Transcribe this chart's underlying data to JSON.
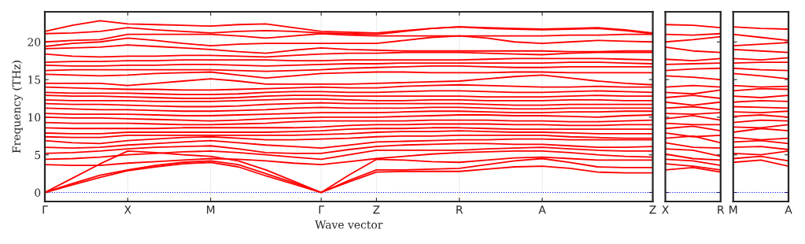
{
  "chart_data": [
    {
      "type": "line",
      "xlabel": "Wave vector",
      "ylabel": "Frequency (THz)",
      "categories": [
        "Γ",
        null,
        null,
        "X",
        null,
        null,
        "M",
        null,
        null,
        null,
        "Γ",
        null,
        "Z",
        null,
        null,
        "R",
        null,
        null,
        "A",
        null,
        null,
        null,
        "Z"
      ],
      "ylim": [
        -1.2,
        24
      ],
      "yticks": [
        0,
        5,
        10,
        15,
        20
      ],
      "grid": "x",
      "ref_lines": [
        {
          "axis": "y",
          "value": 0,
          "color": "#0000ff",
          "line_style": "dotted"
        }
      ],
      "series": [
        {
          "color": "#ff0000",
          "values": [
            0,
            1.0,
            2.0,
            2.9,
            3.4,
            3.8,
            4.0,
            3.4,
            2.2,
            1.1,
            0,
            1.4,
            2.7,
            2.8,
            2.8,
            2.8,
            3.1,
            3.4,
            3.5,
            3.2,
            2.7,
            2.6,
            2.6
          ]
        },
        {
          "color": "#ff0000",
          "values": [
            0,
            1.2,
            2.3,
            3.0,
            3.6,
            4.0,
            4.2,
            3.7,
            2.5,
            1.3,
            0,
            1.6,
            3.0,
            3.0,
            3.1,
            3.2,
            3.7,
            4.2,
            4.5,
            4.0,
            3.4,
            3.3,
            3.3
          ]
        },
        {
          "color": "#ff0000",
          "values": [
            0,
            1.9,
            3.8,
            5.5,
            5.3,
            5.0,
            4.8,
            4.2,
            3.0,
            1.5,
            0,
            2.3,
            4.4,
            4.3,
            4.1,
            4.0,
            4.3,
            4.6,
            4.7,
            4.5,
            4.3,
            4.3,
            4.3
          ]
        },
        {
          "color": "#ff0000",
          "values": [
            3.7,
            3.6,
            3.6,
            3.9,
            4.1,
            4.3,
            4.5,
            4.4,
            4.2,
            3.9,
            3.7,
            4.1,
            4.5,
            4.8,
            5.1,
            5.3,
            5.4,
            5.5,
            5.5,
            5.3,
            5.0,
            4.8,
            4.7
          ]
        },
        {
          "color": "#ff0000",
          "values": [
            4.4,
            4.5,
            4.7,
            5.0,
            5.2,
            5.4,
            5.5,
            5.3,
            5.0,
            4.7,
            4.4,
            5.0,
            5.6,
            5.6,
            5.6,
            5.6,
            5.8,
            5.9,
            6.0,
            5.8,
            5.6,
            5.5,
            5.5
          ]
        },
        {
          "color": "#ff0000",
          "values": [
            5.2,
            5.3,
            5.5,
            5.8,
            6.0,
            6.1,
            6.2,
            5.8,
            5.3,
            5.2,
            5.2,
            5.7,
            6.1,
            6.3,
            6.4,
            6.5,
            6.5,
            6.4,
            6.4,
            6.2,
            6.0,
            6.0,
            6.1
          ]
        },
        {
          "color": "#ff0000",
          "values": [
            6.0,
            5.9,
            6.0,
            6.3,
            6.5,
            6.7,
            6.9,
            6.6,
            6.3,
            6.1,
            5.9,
            6.3,
            6.7,
            6.8,
            6.9,
            7.0,
            7.0,
            7.1,
            7.1,
            7.0,
            7.0,
            7.0,
            7.0
          ]
        },
        {
          "color": "#ff0000",
          "values": [
            6.9,
            6.6,
            6.5,
            6.9,
            7.1,
            7.3,
            7.4,
            7.2,
            7.0,
            7.0,
            7.1,
            7.2,
            7.4,
            7.5,
            7.5,
            7.6,
            7.6,
            7.6,
            7.6,
            7.4,
            7.3,
            7.2,
            7.2
          ]
        },
        {
          "color": "#ff0000",
          "values": [
            7.4,
            7.3,
            7.3,
            7.6,
            7.6,
            7.6,
            7.6,
            7.6,
            7.6,
            7.6,
            7.7,
            7.8,
            8.0,
            8.1,
            8.1,
            8.2,
            8.1,
            8.0,
            8.0,
            7.9,
            7.8,
            7.8,
            7.8
          ]
        },
        {
          "color": "#ff0000",
          "values": [
            7.9,
            7.8,
            7.8,
            8.0,
            8.0,
            8.0,
            8.0,
            8.0,
            8.0,
            8.1,
            8.2,
            8.4,
            8.5,
            8.5,
            8.6,
            8.6,
            8.5,
            8.4,
            8.4,
            8.4,
            8.4,
            8.4,
            8.4
          ]
        },
        {
          "color": "#ff0000",
          "values": [
            8.6,
            8.5,
            8.5,
            8.5,
            8.5,
            8.6,
            8.6,
            8.6,
            8.6,
            8.6,
            8.7,
            8.9,
            9.0,
            9.0,
            9.1,
            9.1,
            9.1,
            9.0,
            9.0,
            8.9,
            8.9,
            9.0,
            9.0
          ]
        },
        {
          "color": "#ff0000",
          "values": [
            9.3,
            9.2,
            9.2,
            9.2,
            9.1,
            9.0,
            9.0,
            9.1,
            9.2,
            9.4,
            9.5,
            9.5,
            9.5,
            9.5,
            9.6,
            9.6,
            9.6,
            9.5,
            9.5,
            9.4,
            9.4,
            9.5,
            9.6
          ]
        },
        {
          "color": "#ff0000",
          "values": [
            10.0,
            9.9,
            9.9,
            9.8,
            9.7,
            9.6,
            9.5,
            9.6,
            9.8,
            9.9,
            10.0,
            10.0,
            10.0,
            10.1,
            10.2,
            10.3,
            10.3,
            10.2,
            10.2,
            10.1,
            10.0,
            10.2,
            10.3
          ]
        },
        {
          "color": "#ff0000",
          "values": [
            10.5,
            10.4,
            10.4,
            10.4,
            10.3,
            10.2,
            10.2,
            10.3,
            10.4,
            10.5,
            10.6,
            10.6,
            10.6,
            10.7,
            10.8,
            10.8,
            10.7,
            10.6,
            10.6,
            10.7,
            10.7,
            10.8,
            10.8
          ]
        },
        {
          "color": "#ff0000",
          "values": [
            11.2,
            11.1,
            11.0,
            11.0,
            10.9,
            10.8,
            10.8,
            10.9,
            11.0,
            11.2,
            11.3,
            11.2,
            11.2,
            11.2,
            11.3,
            11.3,
            11.2,
            11.1,
            11.1,
            11.2,
            11.2,
            11.2,
            11.2
          ]
        },
        {
          "color": "#ff0000",
          "values": [
            11.8,
            11.7,
            11.7,
            11.6,
            11.5,
            11.4,
            11.4,
            11.5,
            11.7,
            11.8,
            11.9,
            11.8,
            11.8,
            11.8,
            11.8,
            11.8,
            11.7,
            11.6,
            11.6,
            11.7,
            11.7,
            11.7,
            11.7
          ]
        },
        {
          "color": "#ff0000",
          "values": [
            12.3,
            12.2,
            12.2,
            12.2,
            12.1,
            12.1,
            12.1,
            12.2,
            12.3,
            12.4,
            12.4,
            12.3,
            12.2,
            12.2,
            12.3,
            12.3,
            12.2,
            12.2,
            12.2,
            12.3,
            12.3,
            12.2,
            12.2
          ]
        },
        {
          "color": "#ff0000",
          "values": [
            12.9,
            12.8,
            12.8,
            12.7,
            12.6,
            12.5,
            12.5,
            12.6,
            12.8,
            12.9,
            12.9,
            12.8,
            12.8,
            12.8,
            12.8,
            12.8,
            12.7,
            12.7,
            12.7,
            12.8,
            12.9,
            12.8,
            12.8
          ]
        },
        {
          "color": "#ff0000",
          "values": [
            13.3,
            13.2,
            13.2,
            13.2,
            13.1,
            13.0,
            13.0,
            13.1,
            13.3,
            13.4,
            13.4,
            13.3,
            13.3,
            13.4,
            13.5,
            13.5,
            13.4,
            13.3,
            13.3,
            13.4,
            13.5,
            13.4,
            13.3
          ]
        },
        {
          "color": "#ff0000",
          "values": [
            14.0,
            13.9,
            13.8,
            13.7,
            13.7,
            13.6,
            13.6,
            13.7,
            13.8,
            13.9,
            14.0,
            13.9,
            13.9,
            14.1,
            14.2,
            14.3,
            14.2,
            14.1,
            14.0,
            14.0,
            14.1,
            14.0,
            14.0
          ]
        },
        {
          "color": "#ff0000",
          "values": [
            14.5,
            14.5,
            14.5,
            14.2,
            14.5,
            14.8,
            15.1,
            14.8,
            14.4,
            14.4,
            14.4,
            14.4,
            14.5,
            14.6,
            14.7,
            14.8,
            15.1,
            15.4,
            15.6,
            15.2,
            14.8,
            14.5,
            14.3
          ]
        },
        {
          "color": "#ff0000",
          "values": [
            15.7,
            15.6,
            15.5,
            15.6,
            15.8,
            15.9,
            16.0,
            15.6,
            15.2,
            15.5,
            15.8,
            15.9,
            16.0,
            16.0,
            15.9,
            15.9,
            15.9,
            16.0,
            16.0,
            15.9,
            15.9,
            15.9,
            15.9
          ]
        },
        {
          "color": "#ff0000",
          "values": [
            16.2,
            16.3,
            16.3,
            16.3,
            16.3,
            16.3,
            16.3,
            16.2,
            16.1,
            16.2,
            16.3,
            16.5,
            16.6,
            16.7,
            16.8,
            16.8,
            16.7,
            16.6,
            16.6,
            16.7,
            16.7,
            16.7,
            16.7
          ]
        },
        {
          "color": "#ff0000",
          "values": [
            16.9,
            16.8,
            16.8,
            16.9,
            16.9,
            17.0,
            17.0,
            16.9,
            16.8,
            16.9,
            17.0,
            17.1,
            17.1,
            17.2,
            17.2,
            17.2,
            17.2,
            17.2,
            17.2,
            17.3,
            17.3,
            17.2,
            17.1
          ]
        },
        {
          "color": "#ff0000",
          "values": [
            17.3,
            17.4,
            17.4,
            17.5,
            17.5,
            17.6,
            17.6,
            17.6,
            17.6,
            17.5,
            17.5,
            17.6,
            17.6,
            17.6,
            17.6,
            17.6,
            17.7,
            17.8,
            17.8,
            17.8,
            17.8,
            17.7,
            17.6
          ]
        },
        {
          "color": "#ff0000",
          "values": [
            18.4,
            18.1,
            18.0,
            18.1,
            18.1,
            18.2,
            18.2,
            18.1,
            18.0,
            18.2,
            18.4,
            18.5,
            18.5,
            18.6,
            18.6,
            18.6,
            18.5,
            18.4,
            18.3,
            18.5,
            18.6,
            18.6,
            18.6
          ]
        },
        {
          "color": "#ff0000",
          "values": [
            19.1,
            19.2,
            19.3,
            19.6,
            19.4,
            19.2,
            19.0,
            18.7,
            18.5,
            18.9,
            19.2,
            19.0,
            18.9,
            18.8,
            18.8,
            18.8,
            18.8,
            18.8,
            18.8,
            18.7,
            18.7,
            18.8,
            18.8
          ]
        },
        {
          "color": "#ff0000",
          "values": [
            19.4,
            19.8,
            20.0,
            20.5,
            20.2,
            19.8,
            19.5,
            19.7,
            19.8,
            19.8,
            19.8,
            19.8,
            19.8,
            20.2,
            20.6,
            20.8,
            20.5,
            20.0,
            19.8,
            20.0,
            20.2,
            20.1,
            20.0
          ]
        },
        {
          "color": "#ff0000",
          "values": [
            20.0,
            20.2,
            20.3,
            21.0,
            21.0,
            21.0,
            21.0,
            20.8,
            20.5,
            20.8,
            21.1,
            20.9,
            20.8,
            20.8,
            20.8,
            20.8,
            20.8,
            20.8,
            20.8,
            20.9,
            20.9,
            21.0,
            21.0
          ]
        },
        {
          "color": "#ff0000",
          "values": [
            21.1,
            21.2,
            21.4,
            21.9,
            21.6,
            21.4,
            21.2,
            21.4,
            21.5,
            21.4,
            21.2,
            21.1,
            21.0,
            21.4,
            21.8,
            22.0,
            21.8,
            21.7,
            21.6,
            21.7,
            21.8,
            21.5,
            21.1
          ]
        },
        {
          "color": "#ff0000",
          "values": [
            21.4,
            22.2,
            22.8,
            22.4,
            22.3,
            22.2,
            22.1,
            22.3,
            22.4,
            21.9,
            21.4,
            21.3,
            21.2,
            21.5,
            21.8,
            22.0,
            21.9,
            21.8,
            21.7,
            21.8,
            21.9,
            21.6,
            21.2
          ]
        }
      ]
    },
    {
      "type": "line",
      "categories": [
        "X",
        null,
        "R"
      ],
      "ylim": [
        -1.2,
        24
      ],
      "yticks": [
        0,
        5,
        10,
        15,
        20
      ],
      "tick_labels": "x",
      "ref_lines": [
        {
          "axis": "y",
          "value": 0,
          "color": "#0000ff",
          "line_style": "dotted"
        }
      ],
      "series": [
        {
          "color": "#ff0000",
          "values": [
            3.0,
            3.3,
            2.7
          ]
        },
        {
          "color": "#ff0000",
          "values": [
            3.8,
            3.5,
            3.0
          ]
        },
        {
          "color": "#ff0000",
          "values": [
            4.4,
            4.2,
            3.6
          ]
        },
        {
          "color": "#ff0000",
          "values": [
            5.1,
            4.5,
            4.3
          ]
        },
        {
          "color": "#ff0000",
          "values": [
            5.8,
            5.6,
            4.8
          ]
        },
        {
          "color": "#ff0000",
          "values": [
            6.6,
            6.0,
            5.9
          ]
        },
        {
          "color": "#ff0000",
          "values": [
            7.2,
            7.5,
            6.6
          ]
        },
        {
          "color": "#ff0000",
          "values": [
            7.9,
            7.4,
            7.6
          ]
        },
        {
          "color": "#ff0000",
          "values": [
            8.5,
            8.8,
            8.2
          ]
        },
        {
          "color": "#ff0000",
          "values": [
            9.2,
            9.0,
            9.0
          ]
        },
        {
          "color": "#ff0000",
          "values": [
            9.8,
            10.2,
            9.6
          ]
        },
        {
          "color": "#ff0000",
          "values": [
            10.5,
            10.4,
            10.6
          ]
        },
        {
          "color": "#ff0000",
          "values": [
            11.2,
            11.4,
            11.0
          ]
        },
        {
          "color": "#ff0000",
          "values": [
            12.0,
            11.6,
            12.0
          ]
        },
        {
          "color": "#ff0000",
          "values": [
            12.6,
            12.9,
            12.5
          ]
        },
        {
          "color": "#ff0000",
          "values": [
            13.3,
            13.1,
            13.6
          ]
        },
        {
          "color": "#ff0000",
          "values": [
            14.0,
            14.2,
            14.0
          ]
        },
        {
          "color": "#ff0000",
          "values": [
            15.5,
            15.3,
            15.0
          ]
        },
        {
          "color": "#ff0000",
          "values": [
            16.2,
            16.4,
            16.5
          ]
        },
        {
          "color": "#ff0000",
          "values": [
            17.0,
            17.1,
            17.2
          ]
        },
        {
          "color": "#ff0000",
          "values": [
            17.7,
            17.5,
            17.8
          ]
        },
        {
          "color": "#ff0000",
          "values": [
            19.3,
            18.8,
            18.6
          ]
        },
        {
          "color": "#ff0000",
          "values": [
            20.0,
            20.3,
            20.7
          ]
        },
        {
          "color": "#ff0000",
          "values": [
            21.0,
            20.9,
            21.1
          ]
        },
        {
          "color": "#ff0000",
          "values": [
            22.3,
            22.2,
            21.9
          ]
        }
      ]
    },
    {
      "type": "line",
      "categories": [
        "M",
        null,
        "A"
      ],
      "ylim": [
        -1.2,
        24
      ],
      "yticks": [
        0,
        5,
        10,
        15,
        20
      ],
      "tick_labels": "x",
      "ref_lines": [
        {
          "axis": "y",
          "value": 0,
          "color": "#0000ff",
          "line_style": "dotted"
        }
      ],
      "series": [
        {
          "color": "#ff0000",
          "values": [
            4.0,
            4.3,
            3.5
          ]
        },
        {
          "color": "#ff0000",
          "values": [
            4.5,
            4.8,
            4.2
          ]
        },
        {
          "color": "#ff0000",
          "values": [
            5.2,
            5.0,
            5.5
          ]
        },
        {
          "color": "#ff0000",
          "values": [
            6.0,
            6.1,
            5.7
          ]
        },
        {
          "color": "#ff0000",
          "values": [
            6.7,
            6.9,
            6.5
          ]
        },
        {
          "color": "#ff0000",
          "values": [
            7.3,
            7.0,
            7.2
          ]
        },
        {
          "color": "#ff0000",
          "values": [
            8.0,
            8.5,
            8.2
          ]
        },
        {
          "color": "#ff0000",
          "values": [
            8.7,
            8.6,
            9.0
          ]
        },
        {
          "color": "#ff0000",
          "values": [
            9.3,
            9.6,
            9.5
          ]
        },
        {
          "color": "#ff0000",
          "values": [
            10.1,
            10.3,
            10.0
          ]
        },
        {
          "color": "#ff0000",
          "values": [
            10.7,
            10.6,
            10.8
          ]
        },
        {
          "color": "#ff0000",
          "values": [
            11.4,
            11.3,
            11.2
          ]
        },
        {
          "color": "#ff0000",
          "values": [
            12.0,
            12.2,
            12.1
          ]
        },
        {
          "color": "#ff0000",
          "values": [
            12.8,
            12.6,
            12.9
          ]
        },
        {
          "color": "#ff0000",
          "values": [
            13.5,
            13.8,
            13.7
          ]
        },
        {
          "color": "#ff0000",
          "values": [
            14.2,
            14.0,
            14.1
          ]
        },
        {
          "color": "#ff0000",
          "values": [
            15.8,
            15.5,
            15.1
          ]
        },
        {
          "color": "#ff0000",
          "values": [
            16.5,
            16.3,
            16.2
          ]
        },
        {
          "color": "#ff0000",
          "values": [
            17.2,
            17.3,
            17.3
          ]
        },
        {
          "color": "#ff0000",
          "values": [
            17.8,
            17.6,
            17.9
          ]
        },
        {
          "color": "#ff0000",
          "values": [
            19.0,
            18.8,
            18.6
          ]
        },
        {
          "color": "#ff0000",
          "values": [
            19.5,
            19.7,
            19.9
          ]
        },
        {
          "color": "#ff0000",
          "values": [
            21.0,
            20.6,
            20.2
          ]
        },
        {
          "color": "#ff0000",
          "values": [
            22.0,
            21.8,
            21.7
          ]
        }
      ]
    }
  ]
}
